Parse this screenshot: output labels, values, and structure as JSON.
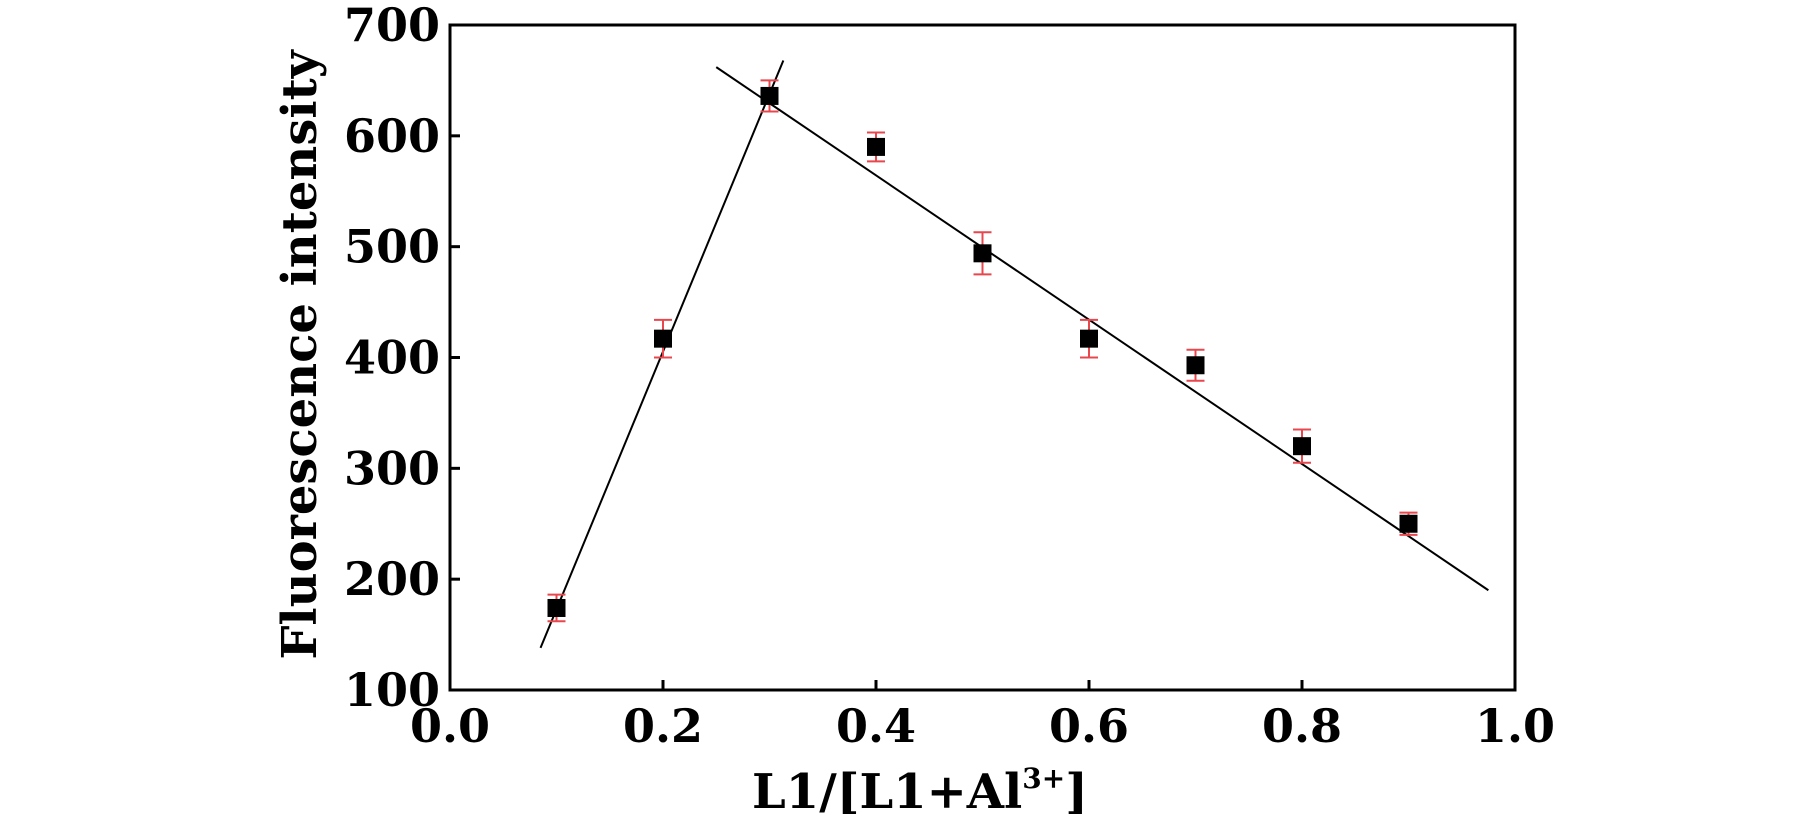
{
  "chart_data": {
    "type": "scatter",
    "xlabel": "L1/[L1+Al",
    "xlabel_superscript": "3+",
    "xlabel_suffix": "]",
    "ylabel": "Fluorescence intensity",
    "xlim": [
      0.0,
      1.0
    ],
    "ylim": [
      100,
      700
    ],
    "xticks": [
      "0.0",
      "0.2",
      "0.4",
      "0.6",
      "0.8",
      "1.0"
    ],
    "yticks": [
      "100",
      "200",
      "300",
      "400",
      "500",
      "600",
      "700"
    ],
    "grid": false,
    "legend": "none",
    "marker": "square",
    "marker_color": "#000000",
    "errorbar_color": "#e8474d",
    "fit_line_color": "#000000",
    "points": [
      {
        "x": 0.1,
        "y": 174,
        "err": 12
      },
      {
        "x": 0.2,
        "y": 417,
        "err": 17
      },
      {
        "x": 0.3,
        "y": 636,
        "err": 14
      },
      {
        "x": 0.4,
        "y": 590,
        "err": 13
      },
      {
        "x": 0.5,
        "y": 494,
        "err": 19
      },
      {
        "x": 0.6,
        "y": 417,
        "err": 17
      },
      {
        "x": 0.7,
        "y": 393,
        "err": 14
      },
      {
        "x": 0.8,
        "y": 320,
        "err": 15
      },
      {
        "x": 0.9,
        "y": 250,
        "err": 10
      }
    ],
    "fit_lines": [
      {
        "x": [
          0.085,
          0.313
        ],
        "y": [
          138,
          668
        ]
      },
      {
        "x": [
          0.25,
          0.975
        ],
        "y": [
          662,
          190
        ]
      }
    ]
  }
}
